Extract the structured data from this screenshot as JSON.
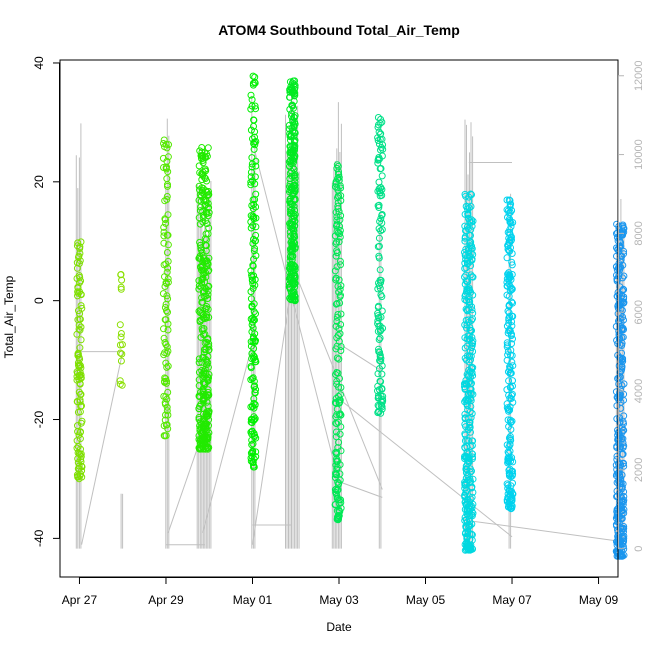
{
  "chart_data": {
    "type": "scatter",
    "title": "ATOM4 Southbound Total_Air_Temp",
    "xlabel": "Date",
    "ylabel": "Total_Air_Temp",
    "x_axis": {
      "unit": "days since Apr 27",
      "range": [
        -0.45,
        12.45
      ],
      "ticks": [
        {
          "value": 0,
          "label": "Apr 27"
        },
        {
          "value": 2,
          "label": "Apr 29"
        },
        {
          "value": 4,
          "label": "May 01"
        },
        {
          "value": 6,
          "label": "May 03"
        },
        {
          "value": 8,
          "label": "May 05"
        },
        {
          "value": 10,
          "label": "May 07"
        },
        {
          "value": 12,
          "label": "May 09"
        }
      ]
    },
    "y_axis": {
      "range": [
        -46.5,
        40.5
      ],
      "ticks": [
        {
          "value": -40,
          "label": "-40"
        },
        {
          "value": -20,
          "label": "-20"
        },
        {
          "value": 0,
          "label": "0"
        },
        {
          "value": 20,
          "label": "20"
        },
        {
          "value": 40,
          "label": "40"
        }
      ]
    },
    "y2_axis": {
      "label": "",
      "range": [
        -720,
        12400
      ],
      "ticks": [
        {
          "value": 0,
          "label": "0"
        },
        {
          "value": 2000,
          "label": "2000"
        },
        {
          "value": 4000,
          "label": "4000"
        },
        {
          "value": 6000,
          "label": "6000"
        },
        {
          "value": 8000,
          "label": "8000"
        },
        {
          "value": 10000,
          "label": "10000"
        },
        {
          "value": 12000,
          "label": "12000"
        }
      ]
    },
    "colors": {
      "altitude_line": "#c0c0c0",
      "right_axis": "#b5b5b5"
    },
    "temperature_flights": [
      {
        "x": 0.0,
        "spread": 0.06,
        "ymin": -30,
        "ymax": 10,
        "color": "#7fe000",
        "count": 110
      },
      {
        "x": 0.97,
        "spread": 0.03,
        "ymin": -15,
        "ymax": 6,
        "color": "#8ae000",
        "count": 16
      },
      {
        "x": 2.0,
        "spread": 0.06,
        "ymin": -23,
        "ymax": 28,
        "color": "#55e800",
        "count": 90
      },
      {
        "x": 2.88,
        "spread": 0.12,
        "ymin": -25,
        "ymax": 26,
        "color": "#22ea00",
        "count": 320
      },
      {
        "x": 4.02,
        "spread": 0.06,
        "ymin": -28,
        "ymax": 38,
        "color": "#00f000",
        "count": 160
      },
      {
        "x": 4.92,
        "spread": 0.07,
        "ymin": 0,
        "ymax": 37,
        "color": "#00ea22",
        "count": 260
      },
      {
        "x": 5.98,
        "spread": 0.07,
        "ymin": -37,
        "ymax": 23,
        "color": "#00e855",
        "count": 170
      },
      {
        "x": 6.95,
        "spread": 0.06,
        "ymin": -19,
        "ymax": 32,
        "color": "#00e088",
        "count": 120
      },
      {
        "x": 9.0,
        "spread": 0.1,
        "ymin": -42,
        "ymax": 18,
        "color": "#00d8e0",
        "count": 340
      },
      {
        "x": 9.95,
        "spread": 0.07,
        "ymin": -35,
        "ymax": 17,
        "color": "#00d2ee",
        "count": 200
      },
      {
        "x": 12.5,
        "spread": 0.09,
        "ymin": -43,
        "ymax": 13,
        "color": "#1a96ee",
        "count": 320
      }
    ],
    "altitude_spikes": [
      {
        "x": -0.02,
        "max": 10800,
        "n": 4
      },
      {
        "x": 0.98,
        "max": 1500,
        "n": 2
      },
      {
        "x": 2.03,
        "max": 11200,
        "n": 3
      },
      {
        "x": 2.88,
        "max": 9600,
        "n": 10
      },
      {
        "x": 4.02,
        "max": 11900,
        "n": 3
      },
      {
        "x": 4.92,
        "max": 11700,
        "n": 10
      },
      {
        "x": 5.95,
        "max": 11400,
        "n": 7
      },
      {
        "x": 6.95,
        "max": 9800,
        "n": 2
      },
      {
        "x": 9.0,
        "max": 11200,
        "n": 6
      },
      {
        "x": 9.95,
        "max": 9900,
        "n": 2
      },
      {
        "x": 12.5,
        "max": 9500,
        "n": 6
      }
    ],
    "altitude_connectors": [
      {
        "x": [
          0.05,
          1.0
        ],
        "y": [
          100,
          5000
        ]
      },
      {
        "x": 0.0,
        "y": 5000,
        "x2": 0.97,
        "y2": 5000
      },
      {
        "x": [
          2.05,
          2.9
        ],
        "y": [
          400,
          3100
        ]
      },
      {
        "x": [
          2.0,
          2.9
        ],
        "y": [
          100,
          100
        ]
      },
      {
        "x": [
          2.85,
          4.0
        ],
        "y": [
          400,
          5200
        ]
      },
      {
        "x": [
          4.0,
          4.9
        ],
        "y": [
          600,
          600
        ]
      },
      {
        "x": [
          4.0,
          4.92
        ],
        "y": [
          100,
          6800
        ]
      },
      {
        "x": [
          4.05,
          5.95
        ],
        "y": [
          10100,
          1900
        ]
      },
      {
        "x": [
          4.95,
          7.0
        ],
        "y": [
          7100,
          1500
        ]
      },
      {
        "x": [
          6.0,
          7.0
        ],
        "y": [
          1700,
          1300
        ]
      },
      {
        "x": [
          6.0,
          10.0
        ],
        "y": [
          3800,
          300
        ]
      },
      {
        "x": [
          6.0,
          7.0
        ],
        "y": [
          5200,
          4500
        ]
      },
      {
        "x": [
          9.05,
          12.4
        ],
        "y": [
          700,
          200
        ]
      },
      {
        "x": [
          9.0,
          10.0
        ],
        "y": [
          9800,
          9800
        ]
      }
    ]
  }
}
